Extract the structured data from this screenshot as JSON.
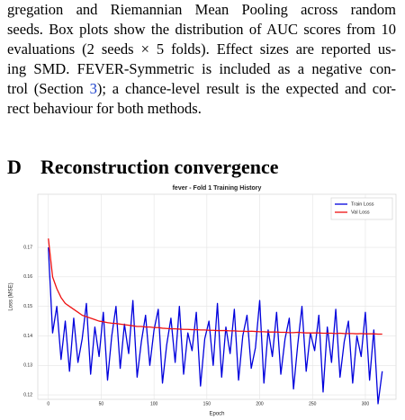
{
  "paragraph": {
    "lines": [
      "gregation and Riemannian Mean Pooling across random",
      "seeds. Box plots show the distribution of AUC scores from 10",
      "evaluations (2 seeds × 5 folds). Effect sizes are reported us-",
      "ing SMD. FEVER-Symmetric is included as a negative con-",
      {
        "before": "trol (Section ",
        "link": "3",
        "after": "); a chance-level result is the expected and cor-"
      },
      "rect behaviour for both methods."
    ]
  },
  "section": {
    "number": "D",
    "title": "Reconstruction convergence"
  },
  "chart_data": {
    "type": "line",
    "title": "fever - Fold 1 Training History",
    "x_label": "Epoch",
    "y_label": "Loss (MSE)",
    "grid": true,
    "legend": "upper right",
    "xlim": [
      -10,
      329
    ],
    "xticks": [
      0,
      50,
      100,
      150,
      200,
      250,
      300
    ],
    "ylim": [
      0.1185,
      0.188
    ],
    "yticks": [
      0.12,
      0.13,
      0.14,
      0.15,
      0.16,
      0.17
    ],
    "x": [
      0,
      4,
      8,
      12,
      16,
      20,
      24,
      28,
      32,
      36,
      40,
      44,
      48,
      52,
      56,
      60,
      64,
      68,
      72,
      76,
      80,
      84,
      88,
      92,
      96,
      100,
      104,
      108,
      112,
      116,
      120,
      124,
      128,
      132,
      136,
      140,
      144,
      148,
      152,
      156,
      160,
      164,
      168,
      172,
      176,
      180,
      184,
      188,
      192,
      196,
      200,
      204,
      208,
      212,
      216,
      220,
      224,
      228,
      232,
      236,
      240,
      244,
      248,
      252,
      256,
      260,
      264,
      268,
      272,
      276,
      280,
      284,
      288,
      292,
      296,
      300,
      304,
      308,
      312,
      316
    ],
    "series": [
      {
        "name": "Train Loss",
        "color": "#0000dd",
        "values": [
          0.17,
          0.141,
          0.15,
          0.132,
          0.145,
          0.128,
          0.146,
          0.131,
          0.139,
          0.151,
          0.127,
          0.143,
          0.133,
          0.148,
          0.125,
          0.14,
          0.15,
          0.129,
          0.144,
          0.134,
          0.152,
          0.126,
          0.138,
          0.147,
          0.13,
          0.142,
          0.149,
          0.124,
          0.137,
          0.146,
          0.131,
          0.15,
          0.127,
          0.141,
          0.135,
          0.148,
          0.123,
          0.139,
          0.145,
          0.13,
          0.151,
          0.126,
          0.143,
          0.134,
          0.149,
          0.125,
          0.14,
          0.147,
          0.129,
          0.136,
          0.152,
          0.124,
          0.142,
          0.133,
          0.148,
          0.127,
          0.139,
          0.146,
          0.122,
          0.137,
          0.15,
          0.128,
          0.141,
          0.135,
          0.147,
          0.121,
          0.143,
          0.131,
          0.149,
          0.126,
          0.138,
          0.145,
          0.124,
          0.14,
          0.133,
          0.148,
          0.125,
          0.142,
          0.117,
          0.128
        ]
      },
      {
        "name": "Val Loss",
        "color": "#ee1111",
        "values": [
          0.173,
          0.16,
          0.156,
          0.153,
          0.151,
          0.15,
          0.149,
          0.148,
          0.147,
          0.1465,
          0.146,
          0.1455,
          0.145,
          0.1448,
          0.1445,
          0.1443,
          0.1442,
          0.144,
          0.1438,
          0.1436,
          0.1434,
          0.1432,
          0.1432,
          0.143,
          0.143,
          0.1428,
          0.1428,
          0.1426,
          0.1425,
          0.1424,
          0.1424,
          0.1423,
          0.1422,
          0.1422,
          0.1421,
          0.1421,
          0.142,
          0.142,
          0.1419,
          0.1419,
          0.1418,
          0.1418,
          0.1418,
          0.1417,
          0.1417,
          0.1416,
          0.1416,
          0.1415,
          0.1416,
          0.1415,
          0.1414,
          0.1414,
          0.1413,
          0.1413,
          0.1413,
          0.1412,
          0.1412,
          0.1411,
          0.1411,
          0.1412,
          0.1411,
          0.141,
          0.141,
          0.141,
          0.141,
          0.1409,
          0.1409,
          0.1409,
          0.1408,
          0.1409,
          0.1408,
          0.1408,
          0.1408,
          0.1407,
          0.1408,
          0.1407,
          0.1407,
          0.1407,
          0.1406,
          0.1406
        ]
      }
    ]
  }
}
